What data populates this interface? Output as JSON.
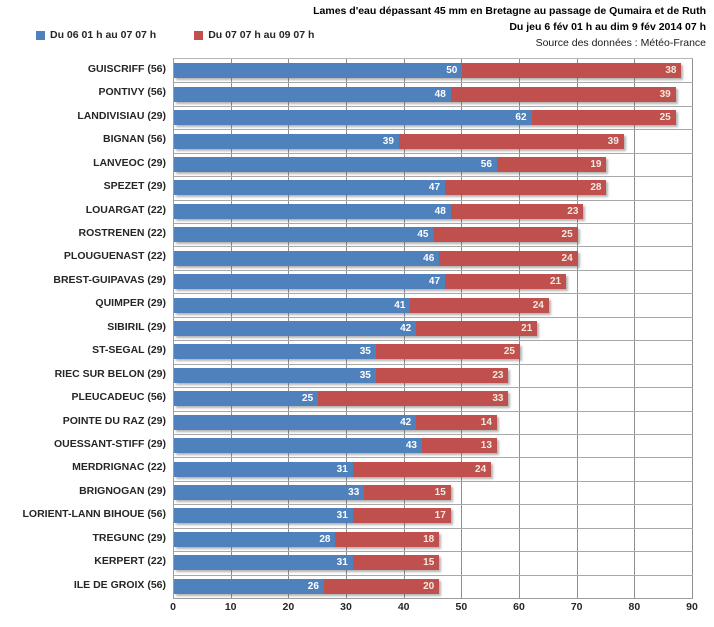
{
  "header": {
    "title": "Lames d'eau dépassant 45 mm en Bretagne au passage de Qumaira et de Ruth",
    "subtitle": "Du jeu 6 fév 01 h au dim 9 fév 2014 07 h",
    "source": "Source des données : Météo-France"
  },
  "chart_data": {
    "type": "bar",
    "orientation": "horizontal",
    "stacked": true,
    "title": "Lames d'eau dépassant 45 mm en Bretagne au passage de Qumaira et de Ruth",
    "subtitle": "Du jeu 6 fév 01 h au dim 9 fév 2014 07 h",
    "source": "Source des données : Météo-France",
    "xlabel": "",
    "ylabel": "",
    "xlim": [
      0,
      90
    ],
    "xticks": [
      0,
      10,
      20,
      30,
      40,
      50,
      60,
      70,
      80,
      90
    ],
    "grid": true,
    "legend_position": "top-left",
    "categories": [
      "GUISCRIFF (56)",
      "PONTIVY (56)",
      "LANDIVISIAU (29)",
      "BIGNAN (56)",
      "LANVEOC (29)",
      "SPEZET (29)",
      "LOUARGAT (22)",
      "ROSTRENEN (22)",
      "PLOUGUENAST (22)",
      "BREST-GUIPAVAS (29)",
      "QUIMPER (29)",
      "SIBIRIL (29)",
      "ST-SEGAL (29)",
      "RIEC SUR BELON (29)",
      "PLEUCADEUC (56)",
      "POINTE DU RAZ (29)",
      "OUESSANT-STIFF (29)",
      "MERDRIGNAC (22)",
      "BRIGNOGAN (29)",
      "LORIENT-LANN BIHOUE (56)",
      "TREGUNC (29)",
      "KERPERT (22)",
      "ILE DE GROIX (56)"
    ],
    "series": [
      {
        "name": "Du 06 01 h au 07 07 h",
        "color": "#4F81BD",
        "label_color": "#FFFFFF",
        "values": [
          50,
          48,
          62,
          39,
          56,
          47,
          48,
          45,
          46,
          47,
          41,
          42,
          35,
          35,
          25,
          42,
          43,
          31,
          33,
          31,
          28,
          31,
          26
        ]
      },
      {
        "name": "Du 07 07 h au 09 07 h",
        "color": "#C0504D",
        "label_color": "#EEECE1",
        "values": [
          38,
          39,
          25,
          39,
          19,
          28,
          23,
          25,
          24,
          21,
          24,
          21,
          25,
          23,
          33,
          14,
          13,
          24,
          15,
          17,
          18,
          15,
          20
        ]
      }
    ]
  }
}
